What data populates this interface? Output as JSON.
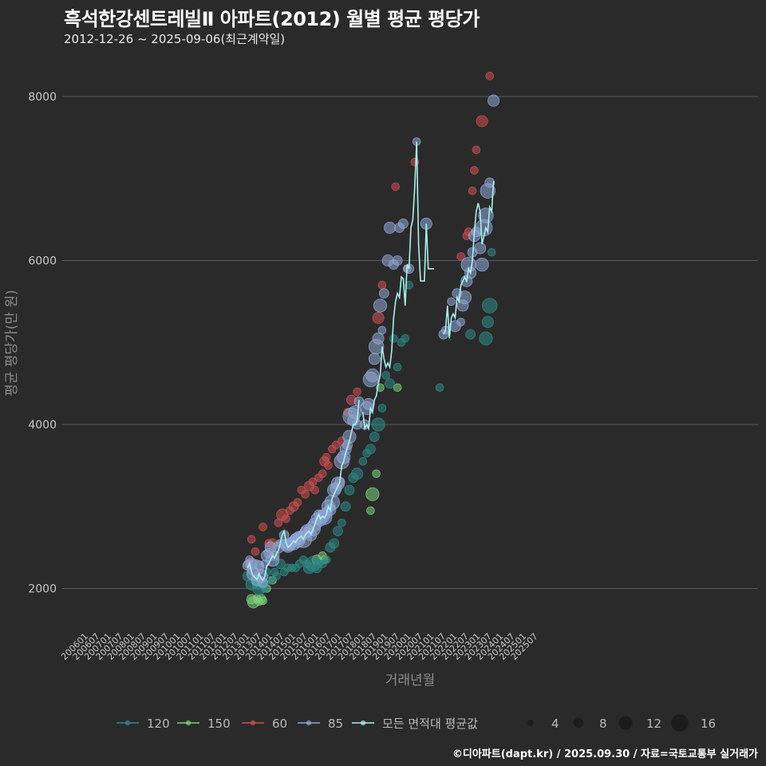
{
  "title": "흑석한강센트레빌Ⅱ 아파트(2012) 월별 평균 평당가",
  "subtitle": "2012-12-26 ~ 2025-09-06(최근계약일)",
  "source": "©디아파트(dapt.kr) / 2025.09.30 / 자료=국토교통부 실거래가",
  "colors": {
    "background": "#2b2a2b",
    "grid": "#5a5a5a",
    "s120": "#2e8b87",
    "s150": "#7bd27b",
    "s60": "#cd5050",
    "s85": "#8fa8d6",
    "avg": "#a8f0ea"
  },
  "chart_data": {
    "type": "line+scatter",
    "title": "흑석한강센트레빌Ⅱ 아파트(2012) 월별 평균 평당가",
    "xlabel": "거래년월",
    "ylabel": "평균 평당가(만 원)",
    "ylim": [
      1500,
      8350
    ],
    "yticks": [
      2000,
      4000,
      6000,
      8000
    ],
    "xticks": [
      "200601",
      "200607",
      "200701",
      "200707",
      "200801",
      "200807",
      "200901",
      "200907",
      "201001",
      "201007",
      "201101",
      "201107",
      "201201",
      "201207",
      "201301",
      "201307",
      "201401",
      "201407",
      "201501",
      "201507",
      "201601",
      "201607",
      "201701",
      "201707",
      "201801",
      "201807",
      "201901",
      "201907",
      "202001",
      "202007",
      "202101",
      "202107",
      "202201",
      "202207",
      "202301",
      "202307",
      "202401",
      "202407",
      "202501",
      "202507"
    ],
    "legend_series_title": "",
    "series": [
      {
        "name": "120",
        "key": "s120"
      },
      {
        "name": "150",
        "key": "s150"
      },
      {
        "name": "60",
        "key": "s60"
      },
      {
        "name": "85",
        "key": "s85"
      },
      {
        "name": "모든 면적대 평균값",
        "key": "avg"
      }
    ],
    "size_legend": [
      4,
      8,
      12,
      16
    ],
    "avg_line": [
      [
        84,
        2250
      ],
      [
        85,
        2300
      ],
      [
        86,
        2210
      ],
      [
        87,
        2150
      ],
      [
        88,
        2130
      ],
      [
        89,
        2110
      ],
      [
        90,
        2180
      ],
      [
        91,
        2120
      ],
      [
        92,
        2100
      ],
      [
        93,
        2150
      ],
      [
        94,
        2280
      ],
      [
        95,
        2300
      ],
      [
        96,
        2350
      ],
      [
        97,
        2400
      ],
      [
        98,
        2370
      ],
      [
        99,
        2420
      ],
      [
        100,
        2460
      ],
      [
        101,
        2550
      ],
      [
        102,
        2650
      ],
      [
        103,
        2700
      ],
      [
        104,
        2560
      ],
      [
        105,
        2500
      ],
      [
        106,
        2520
      ],
      [
        107,
        2550
      ],
      [
        108,
        2580
      ],
      [
        109,
        2560
      ],
      [
        110,
        2600
      ],
      [
        111,
        2620
      ],
      [
        112,
        2640
      ],
      [
        113,
        2600
      ],
      [
        114,
        2650
      ],
      [
        115,
        2680
      ],
      [
        116,
        2700
      ],
      [
        117,
        2660
      ],
      [
        118,
        2720
      ],
      [
        119,
        2780
      ],
      [
        120,
        2850
      ],
      [
        121,
        2900
      ],
      [
        122,
        2850
      ],
      [
        123,
        2880
      ],
      [
        124,
        2860
      ],
      [
        125,
        2900
      ],
      [
        126,
        3000
      ],
      [
        127,
        2950
      ],
      [
        128,
        3100
      ],
      [
        129,
        3150
      ],
      [
        130,
        3200
      ],
      [
        131,
        3250
      ],
      [
        132,
        3300
      ],
      [
        133,
        3500
      ],
      [
        134,
        3550
      ],
      [
        135,
        3650
      ],
      [
        136,
        3720
      ],
      [
        137,
        3800
      ],
      [
        138,
        3900
      ],
      [
        139,
        4000
      ],
      [
        140,
        4000
      ],
      [
        141,
        4050
      ],
      [
        142,
        4300
      ],
      null,
      [
        144,
        4150
      ],
      [
        145,
        3950
      ],
      [
        146,
        4000
      ],
      [
        147,
        3950
      ],
      [
        148,
        4200
      ],
      [
        149,
        4150
      ],
      [
        150,
        4300
      ],
      [
        151,
        4350
      ],
      [
        152,
        4500
      ],
      [
        153,
        4600
      ],
      [
        154,
        4950
      ],
      [
        155,
        4800
      ],
      [
        156,
        4700
      ],
      [
        157,
        4750
      ],
      [
        158,
        4700
      ],
      [
        159,
        4900
      ],
      [
        160,
        5300
      ],
      [
        161,
        5500
      ],
      [
        162,
        5600
      ],
      [
        163,
        5550
      ],
      [
        164,
        5800
      ],
      [
        165,
        5780
      ],
      [
        166,
        5450
      ],
      [
        167,
        5950
      ],
      [
        168,
        5900
      ],
      [
        169,
        6400
      ],
      [
        170,
        6500
      ],
      [
        171,
        6900
      ],
      [
        172,
        7450
      ],
      [
        173,
        6200
      ],
      [
        174,
        5750
      ],
      [
        175,
        5750
      ],
      [
        176,
        5750
      ],
      [
        177,
        6450
      ],
      [
        178,
        5900
      ],
      [
        179,
        5900
      ],
      [
        180,
        5900
      ],
      [
        181,
        5900
      ],
      null,
      [
        186,
        5100
      ],
      [
        187,
        5150
      ],
      [
        188,
        5450
      ],
      [
        189,
        5050
      ],
      [
        190,
        5300
      ],
      [
        191,
        5350
      ],
      [
        192,
        5300
      ],
      [
        193,
        5550
      ],
      [
        194,
        5500
      ],
      [
        195,
        5700
      ],
      [
        196,
        5750
      ],
      [
        197,
        5800
      ],
      [
        198,
        5750
      ],
      [
        199,
        5900
      ],
      [
        200,
        5850
      ],
      [
        201,
        6000
      ],
      [
        202,
        6350
      ],
      [
        203,
        6600
      ],
      [
        204,
        6700
      ],
      [
        205,
        6600
      ],
      [
        206,
        6200
      ],
      [
        207,
        6300
      ],
      [
        208,
        6400
      ],
      [
        209,
        6350
      ],
      [
        210,
        6650
      ],
      [
        211,
        6600
      ],
      [
        212,
        6970
      ]
    ],
    "points_85": [
      [
        84,
        2280,
        8
      ],
      [
        85,
        2350,
        6
      ],
      [
        86,
        2300,
        10
      ],
      [
        87,
        2180,
        12
      ],
      [
        88,
        2250,
        16
      ],
      [
        89,
        2100,
        10
      ],
      [
        90,
        2280,
        8
      ],
      [
        91,
        2150,
        12
      ],
      [
        92,
        2070,
        8
      ],
      [
        93,
        2300,
        6
      ],
      [
        94,
        2400,
        10
      ],
      [
        95,
        2430,
        8
      ],
      [
        96,
        2500,
        10
      ],
      [
        97,
        2350,
        12
      ],
      [
        98,
        2400,
        8
      ],
      [
        100,
        2500,
        10
      ],
      [
        101,
        2550,
        6
      ],
      [
        103,
        2650,
        8
      ],
      [
        104,
        2530,
        10
      ],
      [
        105,
        2520,
        12
      ],
      [
        106,
        2530,
        10
      ],
      [
        107,
        2570,
        8
      ],
      [
        108,
        2550,
        12
      ],
      [
        109,
        2600,
        10
      ],
      [
        110,
        2590,
        14
      ],
      [
        111,
        2620,
        12
      ],
      [
        112,
        2640,
        8
      ],
      [
        113,
        2600,
        16
      ],
      [
        114,
        2680,
        10
      ],
      [
        115,
        2700,
        12
      ],
      [
        116,
        2720,
        8
      ],
      [
        117,
        2650,
        10
      ],
      [
        118,
        2730,
        14
      ],
      [
        119,
        2780,
        12
      ],
      [
        120,
        2850,
        10
      ],
      [
        121,
        2900,
        8
      ],
      [
        122,
        2830,
        10
      ],
      [
        123,
        2880,
        12
      ],
      [
        124,
        2870,
        14
      ],
      [
        125,
        2920,
        10
      ],
      [
        126,
        3000,
        12
      ],
      [
        127,
        2960,
        10
      ],
      [
        128,
        3050,
        14
      ],
      [
        129,
        3200,
        12
      ],
      [
        130,
        3220,
        10
      ],
      [
        131,
        3280,
        12
      ],
      [
        132,
        3300,
        8
      ],
      [
        133,
        3550,
        14
      ],
      [
        134,
        3600,
        12
      ],
      [
        135,
        3700,
        10
      ],
      [
        136,
        3750,
        8
      ],
      [
        137,
        3850,
        12
      ],
      [
        138,
        4100,
        16
      ],
      [
        139,
        4050,
        10
      ],
      [
        140,
        4150,
        12
      ],
      [
        141,
        4000,
        8
      ],
      [
        142,
        4280,
        8
      ],
      [
        145,
        4000,
        8
      ],
      [
        146,
        4200,
        12
      ],
      [
        147,
        4250,
        10
      ],
      [
        148,
        4550,
        14
      ],
      [
        149,
        4600,
        12
      ],
      [
        150,
        4800,
        10
      ],
      [
        151,
        4950,
        14
      ],
      [
        152,
        5050,
        10
      ],
      [
        153,
        5450,
        12
      ],
      [
        154,
        5150,
        6
      ],
      [
        155,
        5600,
        8
      ],
      [
        157,
        6000,
        10
      ],
      [
        158,
        6400,
        10
      ],
      [
        160,
        5950,
        8
      ],
      [
        162,
        6000,
        8
      ],
      [
        163,
        6400,
        8
      ],
      [
        165,
        6450,
        8
      ],
      [
        167,
        5900,
        6
      ],
      [
        168,
        5900,
        8
      ],
      [
        172,
        7450,
        6
      ],
      [
        177,
        6450,
        10
      ],
      [
        186,
        5100,
        8
      ],
      [
        187,
        5150,
        6
      ],
      [
        190,
        5500,
        6
      ],
      [
        192,
        5200,
        10
      ],
      [
        193,
        5600,
        8
      ],
      [
        195,
        5250,
        6
      ],
      [
        196,
        5450,
        10
      ],
      [
        197,
        5550,
        12
      ],
      [
        198,
        5750,
        10
      ],
      [
        199,
        5950,
        14
      ],
      [
        200,
        5850,
        10
      ],
      [
        201,
        6100,
        8
      ],
      [
        202,
        6300,
        10
      ],
      [
        203,
        6350,
        8
      ],
      [
        205,
        6150,
        10
      ],
      [
        206,
        5950,
        12
      ],
      [
        207,
        6400,
        16
      ],
      [
        208,
        6550,
        14
      ],
      [
        209,
        6850,
        14
      ],
      [
        210,
        6950,
        8
      ],
      [
        212,
        7950,
        10
      ]
    ],
    "points_60": [
      [
        84,
        2300,
        6
      ],
      [
        86,
        2600,
        6
      ],
      [
        88,
        2450,
        6
      ],
      [
        92,
        2750,
        6
      ],
      [
        95,
        2550,
        6
      ],
      [
        97,
        2550,
        8
      ],
      [
        100,
        2800,
        6
      ],
      [
        102,
        2900,
        10
      ],
      [
        104,
        2850,
        6
      ],
      [
        106,
        2950,
        6
      ],
      [
        108,
        3000,
        8
      ],
      [
        110,
        3050,
        6
      ],
      [
        112,
        3200,
        6
      ],
      [
        114,
        3150,
        6
      ],
      [
        116,
        3250,
        8
      ],
      [
        118,
        3300,
        6
      ],
      [
        119,
        3200,
        6
      ],
      [
        121,
        3350,
        6
      ],
      [
        123,
        3400,
        6
      ],
      [
        124,
        3550,
        8
      ],
      [
        125,
        3600,
        6
      ],
      [
        126,
        3500,
        6
      ],
      [
        128,
        3700,
        6
      ],
      [
        130,
        3750,
        6
      ],
      [
        133,
        3800,
        6
      ],
      [
        136,
        4150,
        6
      ],
      [
        138,
        4300,
        8
      ],
      [
        141,
        4400,
        6
      ],
      [
        152,
        5300,
        10
      ],
      [
        154,
        5700,
        6
      ],
      [
        161,
        6900,
        6
      ],
      [
        171,
        7200,
        6
      ],
      [
        195,
        6050,
        6
      ],
      [
        198,
        6300,
        6
      ],
      [
        199,
        6350,
        6
      ],
      [
        201,
        6850,
        6
      ],
      [
        202,
        7100,
        6
      ],
      [
        203,
        7350,
        6
      ],
      [
        206,
        7700,
        10
      ],
      [
        210,
        8250,
        6
      ]
    ],
    "points_120": [
      [
        84,
        2150,
        8
      ],
      [
        86,
        2050,
        10
      ],
      [
        88,
        2100,
        8
      ],
      [
        89,
        2050,
        8
      ],
      [
        90,
        2000,
        12
      ],
      [
        91,
        2080,
        10
      ],
      [
        92,
        2050,
        8
      ],
      [
        93,
        2000,
        6
      ],
      [
        94,
        2200,
        6
      ],
      [
        96,
        2100,
        6
      ],
      [
        98,
        2200,
        6
      ],
      [
        99,
        2150,
        6
      ],
      [
        101,
        2300,
        8
      ],
      [
        103,
        2200,
        6
      ],
      [
        105,
        2250,
        6
      ],
      [
        107,
        2250,
        6
      ],
      [
        109,
        2250,
        6
      ],
      [
        111,
        2300,
        6
      ],
      [
        113,
        2350,
        6
      ],
      [
        115,
        2300,
        6
      ],
      [
        116,
        2250,
        10
      ],
      [
        118,
        2300,
        14
      ],
      [
        120,
        2250,
        8
      ],
      [
        121,
        2300,
        6
      ],
      [
        123,
        2300,
        6
      ],
      [
        125,
        2350,
        6
      ],
      [
        127,
        2500,
        8
      ],
      [
        129,
        2550,
        8
      ],
      [
        131,
        2700,
        8
      ],
      [
        133,
        2800,
        6
      ],
      [
        135,
        3000,
        8
      ],
      [
        137,
        3200,
        8
      ],
      [
        139,
        3350,
        8
      ],
      [
        141,
        3400,
        10
      ],
      [
        144,
        3550,
        6
      ],
      [
        146,
        3650,
        6
      ],
      [
        148,
        3700,
        8
      ],
      [
        150,
        3850,
        8
      ],
      [
        152,
        4000,
        12
      ],
      [
        154,
        4200,
        6
      ],
      [
        156,
        4600,
        6
      ],
      [
        158,
        4500,
        8
      ],
      [
        160,
        5050,
        6
      ],
      [
        162,
        4700,
        6
      ],
      [
        164,
        5000,
        6
      ],
      [
        166,
        5050,
        6
      ],
      [
        168,
        5700,
        6
      ],
      [
        184,
        4450,
        6
      ],
      [
        200,
        5100,
        8
      ],
      [
        208,
        5050,
        12
      ],
      [
        209,
        5250,
        10
      ],
      [
        210,
        5450,
        14
      ],
      [
        211,
        6100,
        6
      ]
    ],
    "points_150": [
      [
        86,
        1870,
        8
      ],
      [
        87,
        1830,
        10
      ],
      [
        89,
        1880,
        6
      ],
      [
        90,
        1840,
        6
      ],
      [
        91,
        1870,
        8
      ],
      [
        92,
        1850,
        6
      ],
      [
        94,
        2000,
        6
      ],
      [
        97,
        2100,
        6
      ],
      [
        120,
        2350,
        8
      ],
      [
        123,
        2400,
        6
      ],
      [
        124,
        2350,
        6
      ],
      [
        148,
        2950,
        6
      ],
      [
        149,
        3150,
        12
      ],
      [
        151,
        3400,
        6
      ],
      [
        153,
        4450,
        6
      ],
      [
        162,
        4450,
        6
      ]
    ]
  }
}
